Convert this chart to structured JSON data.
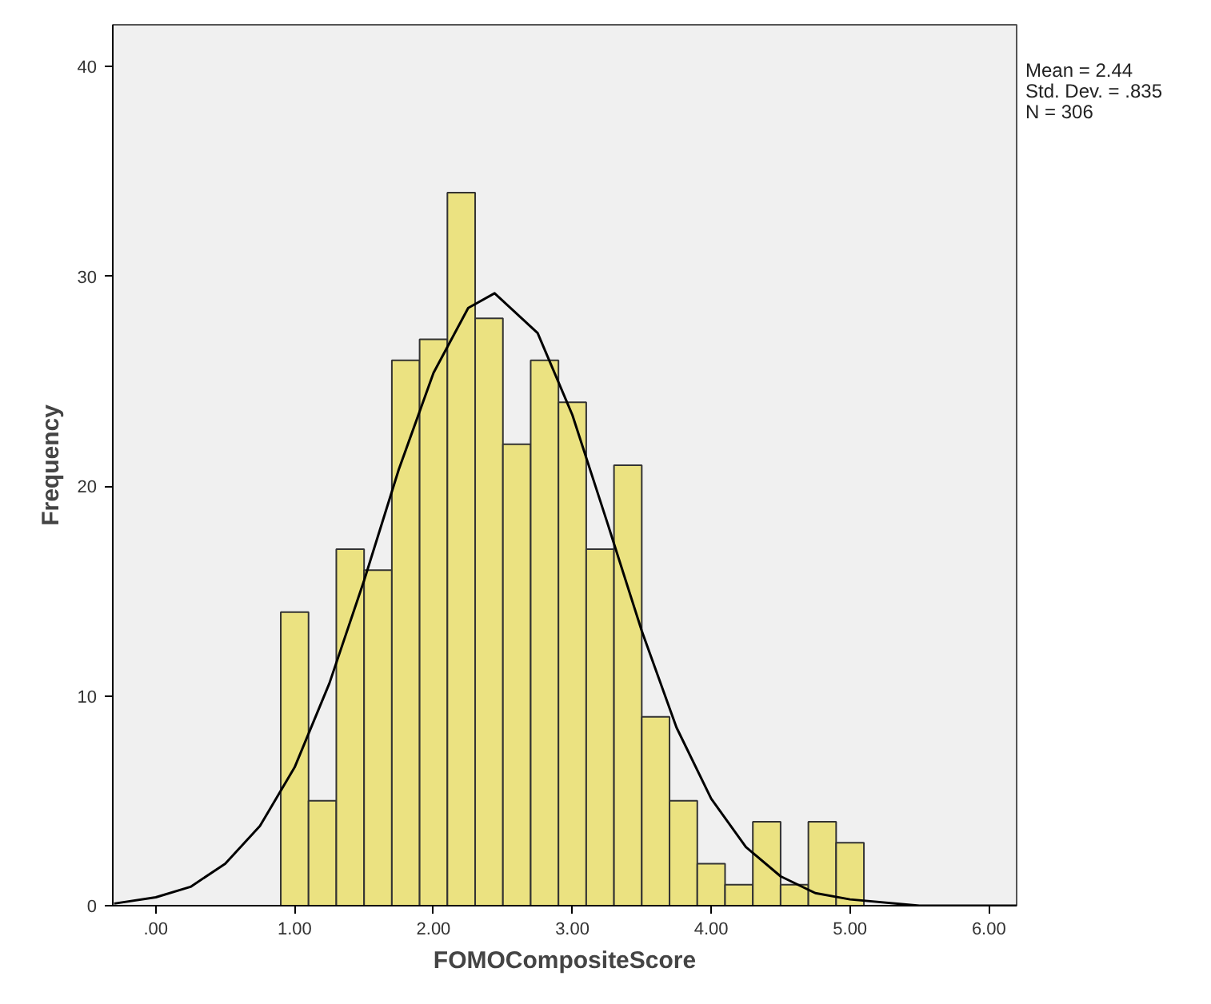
{
  "chart_data": {
    "type": "histogram",
    "xlabel": "FOMOCompositeScore",
    "ylabel": "Frequency",
    "bins": [
      0.9,
      1.1,
      1.3,
      1.5,
      1.7,
      1.9,
      2.1,
      2.3,
      2.5,
      2.7,
      2.9,
      3.1,
      3.3,
      3.5,
      3.7,
      3.9,
      4.1,
      4.3,
      4.5,
      4.7,
      4.9,
      5.1
    ],
    "values": [
      14,
      5,
      17,
      16,
      26,
      27,
      34,
      28,
      22,
      26,
      24,
      17,
      21,
      9,
      5,
      2,
      1,
      4,
      1,
      4,
      3
    ],
    "color": "#ebe281",
    "series": [
      {
        "type": "line",
        "color": "#000000",
        "x": [
          -0.3,
          0,
          0.25,
          0.5,
          0.75,
          1,
          1.25,
          1.5,
          1.75,
          2,
          2.25,
          2.44,
          2.75,
          3,
          3.25,
          3.5,
          3.75,
          4,
          4.25,
          4.5,
          4.75,
          5,
          5.5,
          6,
          6.2
        ],
        "values": [
          0.1,
          0.4,
          0.9,
          2,
          3.8,
          6.6,
          10.6,
          15.5,
          20.8,
          25.4,
          28.5,
          29.2,
          27.3,
          23.4,
          18.3,
          13.1,
          8.5,
          5.1,
          2.8,
          1.4,
          0.6,
          0.3,
          0,
          0,
          0
        ]
      }
    ],
    "xlim": [
      -0.31,
      6.2
    ],
    "ylim": [
      0,
      42
    ],
    "xticks": [
      {
        "value": 0,
        "label": ".00"
      },
      {
        "value": 1,
        "label": "1.00"
      },
      {
        "value": 2,
        "label": "2.00"
      },
      {
        "value": 3,
        "label": "3.00"
      },
      {
        "value": 4,
        "label": "4.00"
      },
      {
        "value": 5,
        "label": "5.00"
      },
      {
        "value": 6,
        "label": "6.00"
      }
    ],
    "yticks": [
      0,
      10,
      20,
      30,
      40
    ],
    "annotations": [
      "Mean = 2.44",
      "Std. Dev. = .835",
      "N = 306"
    ]
  }
}
